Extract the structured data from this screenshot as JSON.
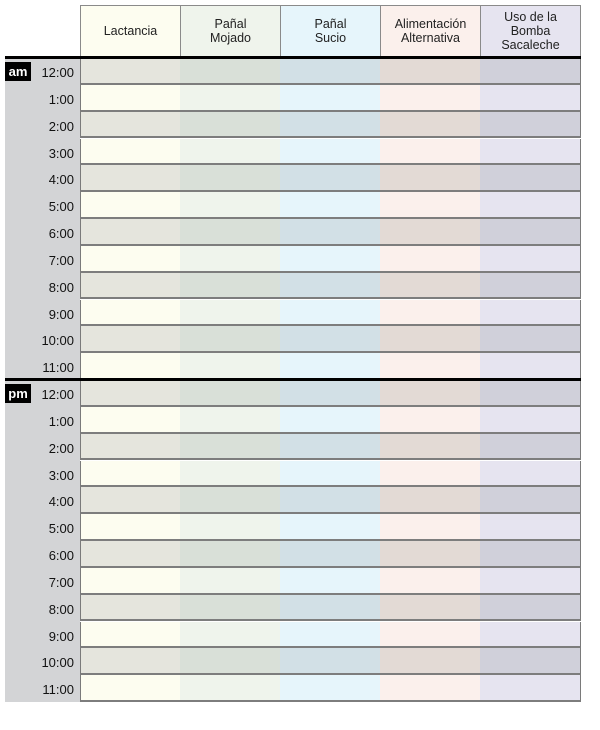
{
  "columns": [
    {
      "label": "Lactancia",
      "light": "#fdfdf0",
      "dark": "#e5e5dd"
    },
    {
      "label": "Pañal\nMojado",
      "light": "#eff4ec",
      "dark": "#d9e0d8"
    },
    {
      "label": "Pañal\nSucio",
      "light": "#e6f5fb",
      "dark": "#d2e0e6"
    },
    {
      "label": "Alimentación\nAlternativa",
      "light": "#fbf0ec",
      "dark": "#e3dad5"
    },
    {
      "label": "Uso de la\nBomba\nSacaleche",
      "light": "#e6e4f0",
      "dark": "#d0d0da"
    }
  ],
  "sections": [
    {
      "label": "am",
      "times": [
        "12:00",
        "1:00",
        "2:00",
        "3:00",
        "4:00",
        "5:00",
        "6:00",
        "7:00",
        "8:00",
        "9:00",
        "10:00",
        "11:00"
      ]
    },
    {
      "label": "pm",
      "times": [
        "12:00",
        "1:00",
        "2:00",
        "3:00",
        "4:00",
        "5:00",
        "6:00",
        "7:00",
        "8:00",
        "9:00",
        "10:00",
        "11:00"
      ]
    }
  ],
  "colors": {
    "sidebar": "#d3d4d6",
    "divider": "#000000"
  }
}
